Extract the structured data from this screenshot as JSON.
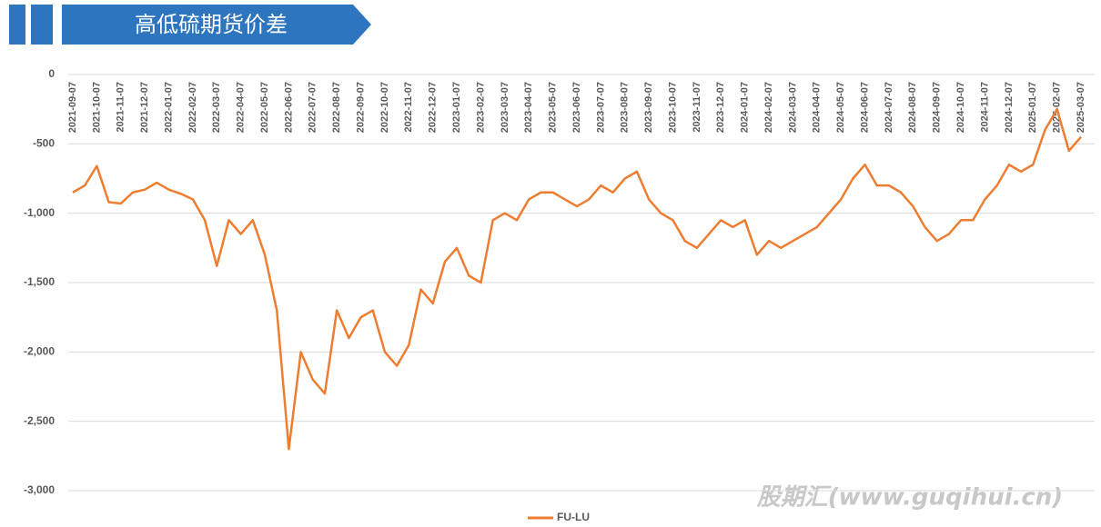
{
  "chart_data": {
    "type": "line",
    "title": "高低硫期货价差",
    "watermark": "股期汇(www.guqihui.cn)",
    "categories": [
      "2021-09-07",
      null,
      "2021-10-07",
      null,
      "2021-11-07",
      null,
      "2021-12-07",
      null,
      "2022-01-07",
      null,
      "2022-02-07",
      null,
      "2022-03-07",
      null,
      "2022-04-07",
      null,
      "2022-05-07",
      null,
      "2022-06-07",
      null,
      "2022-07-07",
      null,
      "2022-08-07",
      null,
      "2022-09-07",
      null,
      "2022-10-07",
      null,
      "2022-11-07",
      null,
      "2022-12-07",
      null,
      "2023-01-07",
      null,
      "2023-02-07",
      null,
      "2023-03-07",
      null,
      "2023-04-07",
      null,
      "2023-05-07",
      null,
      "2023-06-07",
      null,
      "2023-07-07",
      null,
      "2023-08-07",
      null,
      "2023-09-07",
      null,
      "2023-10-07",
      null,
      "2023-11-07",
      null,
      "2023-12-07",
      null,
      "2024-01-07",
      null,
      "2024-02-07",
      null,
      "2024-03-07",
      null,
      "2024-04-07",
      null,
      "2024-05-07",
      null,
      "2024-06-07",
      null,
      "2024-07-07",
      null,
      "2024-08-07",
      null,
      "2024-09-07",
      null,
      "2024-10-07",
      null,
      "2024-11-07",
      null,
      "2024-12-07",
      null,
      "2025-01-07",
      null,
      "2025-02-07",
      null,
      "2025-03-07"
    ],
    "series": [
      {
        "name": "FU-LU",
        "color": "#ED7D31",
        "values": [
          -850,
          -800,
          -660,
          -920,
          -930,
          -850,
          -830,
          -780,
          -830,
          -860,
          -900,
          -1050,
          -1380,
          -1050,
          -1150,
          -1050,
          -1300,
          -1700,
          -2700,
          -2000,
          -2200,
          -2300,
          -1700,
          -1900,
          -1750,
          -1700,
          -2000,
          -2100,
          -1950,
          -1550,
          -1650,
          -1350,
          -1250,
          -1450,
          -1500,
          -1050,
          -1000,
          -1050,
          -900,
          -850,
          -850,
          -900,
          -950,
          -900,
          -800,
          -850,
          -750,
          -700,
          -900,
          -1000,
          -1050,
          -1200,
          -1250,
          -1150,
          -1050,
          -1100,
          -1050,
          -1300,
          -1200,
          -1250,
          -1200,
          -1150,
          -1100,
          -1000,
          -900,
          -750,
          -650,
          -800,
          -800,
          -850,
          -950,
          -1100,
          -1200,
          -1150,
          -1050,
          -1050,
          -900,
          -800,
          -650,
          -700,
          -650,
          -400,
          -250,
          -550,
          -450
        ]
      }
    ],
    "ylim": [
      -3000,
      0
    ],
    "yticks": [
      0,
      -500,
      {
        "value": -1000,
        "label": "-1,000"
      },
      {
        "value": -1500,
        "label": "-1,500"
      },
      {
        "value": -2000,
        "label": "-2,000"
      },
      {
        "value": -2500,
        "label": "-2,500"
      },
      {
        "value": -3000,
        "label": "-3,000"
      }
    ],
    "grid": true
  }
}
